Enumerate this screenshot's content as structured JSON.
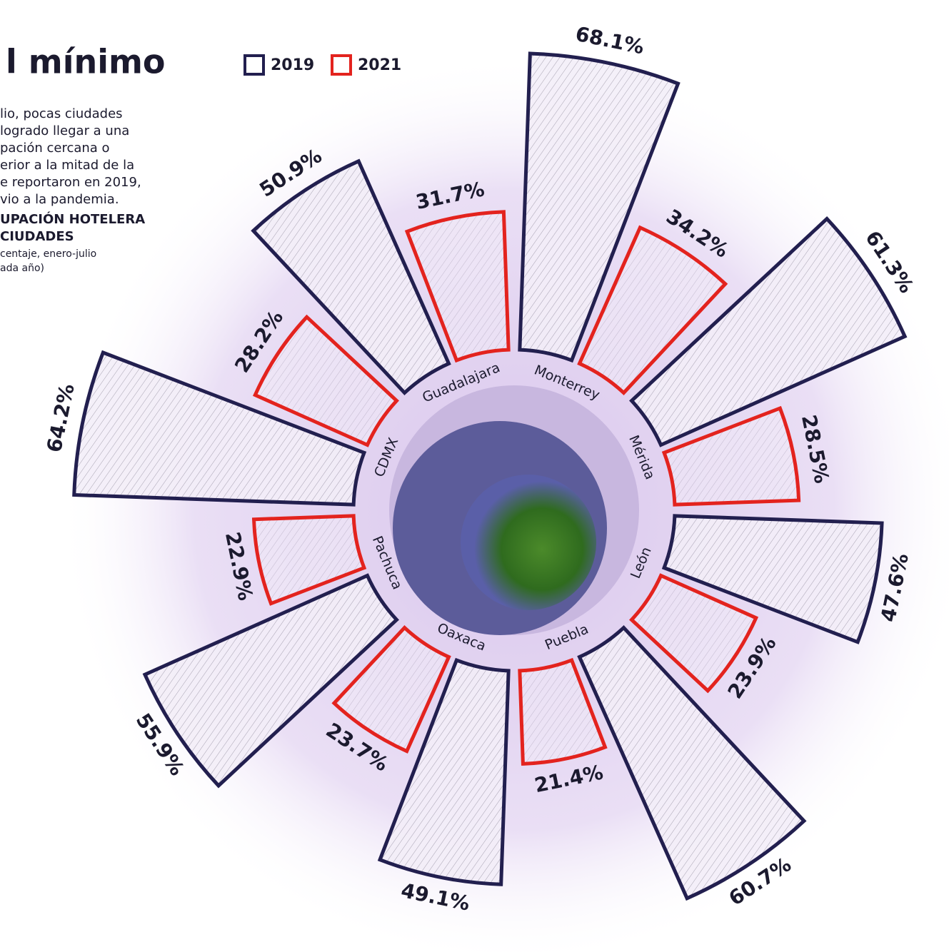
{
  "chart_data": {
    "type": "radial-bar",
    "title": "l mínimo",
    "description": [
      "lio, pocas ciudades",
      "logrado llegar a una",
      "pación cercana o",
      "erior a la mitad de la",
      "e reportaron en 2019,",
      "vio a la pandemia."
    ],
    "chart_title": [
      "UPACIÓN HOTELERA",
      "CIUDADES"
    ],
    "note": [
      "centaje, enero-julio",
      "ada año)"
    ],
    "categories": [
      "Monterrey",
      "Mérida",
      "León",
      "Puebla",
      "Oaxaca",
      "Pachuca",
      "CDMX",
      "Guadalajara"
    ],
    "series": [
      {
        "name": "2019",
        "color": "#221f4f",
        "values": [
          68.1,
          61.3,
          47.6,
          60.7,
          49.1,
          55.9,
          64.2,
          50.9
        ],
        "value_labels": [
          "68.1%",
          "61.3%",
          "47.6%",
          "60.7%",
          "49.1%",
          "55.9%",
          "64.2%",
          "50.9%"
        ]
      },
      {
        "name": "2021",
        "color": "#e3231e",
        "values": [
          34.2,
          28.5,
          23.9,
          21.4,
          23.7,
          22.9,
          28.2,
          31.7
        ],
        "value_labels": [
          "34.2%",
          "28.5%",
          "23.9%",
          "21.4%",
          "23.7%",
          "22.9%",
          "28.2%",
          "31.7%"
        ]
      }
    ]
  }
}
